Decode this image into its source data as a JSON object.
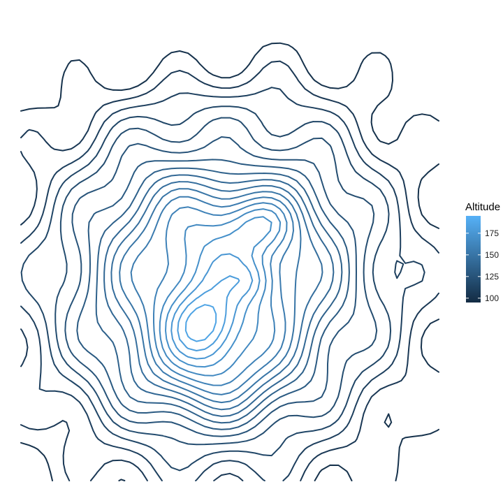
{
  "chart_data": {
    "type": "contour",
    "title": "",
    "xlabel": "",
    "ylabel": "",
    "grid": false,
    "axes_visible": false,
    "legend_placement": "right",
    "legend": {
      "title": "Altitude",
      "ticks": [
        100,
        125,
        150,
        175
      ],
      "range": [
        95,
        195
      ],
      "color_low": "#132B43",
      "color_high": "#56B1F7"
    },
    "contour_levels": [
      100,
      105,
      110,
      115,
      120,
      125,
      130,
      135,
      140,
      145,
      150,
      155,
      160,
      165,
      170,
      175,
      180,
      185,
      190
    ]
  }
}
